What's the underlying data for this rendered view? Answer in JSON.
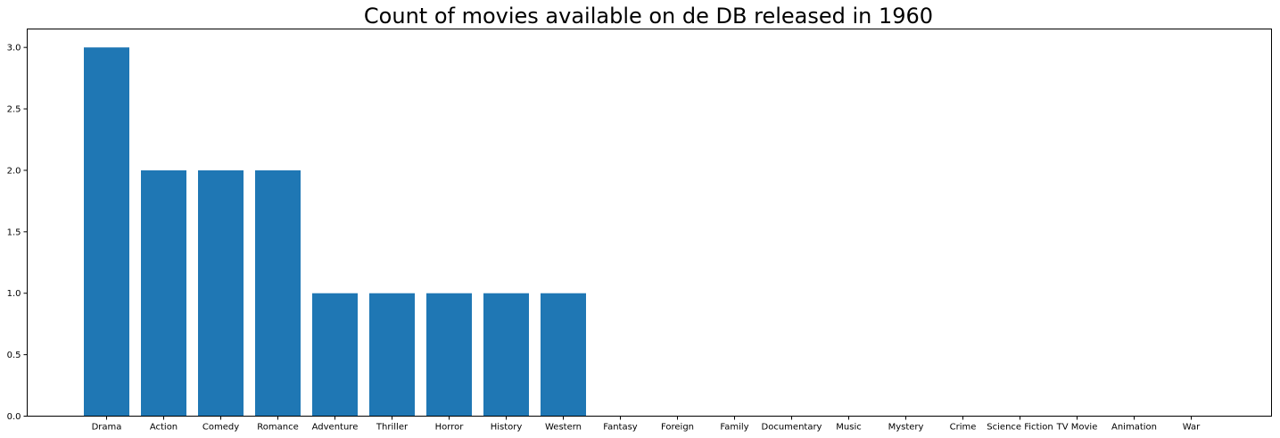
{
  "chart_data": {
    "type": "bar",
    "title": "Count of movies available on de DB released in 1960",
    "xlabel": "",
    "ylabel": "",
    "categories": [
      "Drama",
      "Action",
      "Comedy",
      "Romance",
      "Adventure",
      "Thriller",
      "Horror",
      "History",
      "Western",
      "Fantasy",
      "Foreign",
      "Family",
      "Documentary",
      "Music",
      "Mystery",
      "Crime",
      "Science Fiction",
      "TV Movie",
      "Animation",
      "War"
    ],
    "values": [
      3,
      2,
      2,
      2,
      1,
      1,
      1,
      1,
      1,
      0,
      0,
      0,
      0,
      0,
      0,
      0,
      0,
      0,
      0,
      0
    ],
    "ylim": [
      0,
      3.15
    ],
    "yticks": [
      0.0,
      0.5,
      1.0,
      1.5,
      2.0,
      2.5,
      3.0
    ],
    "ytick_labels": [
      "0.0",
      "0.5",
      "1.0",
      "1.5",
      "2.0",
      "2.5",
      "3.0"
    ],
    "grid": false,
    "bar_color": "#1f77b4"
  }
}
